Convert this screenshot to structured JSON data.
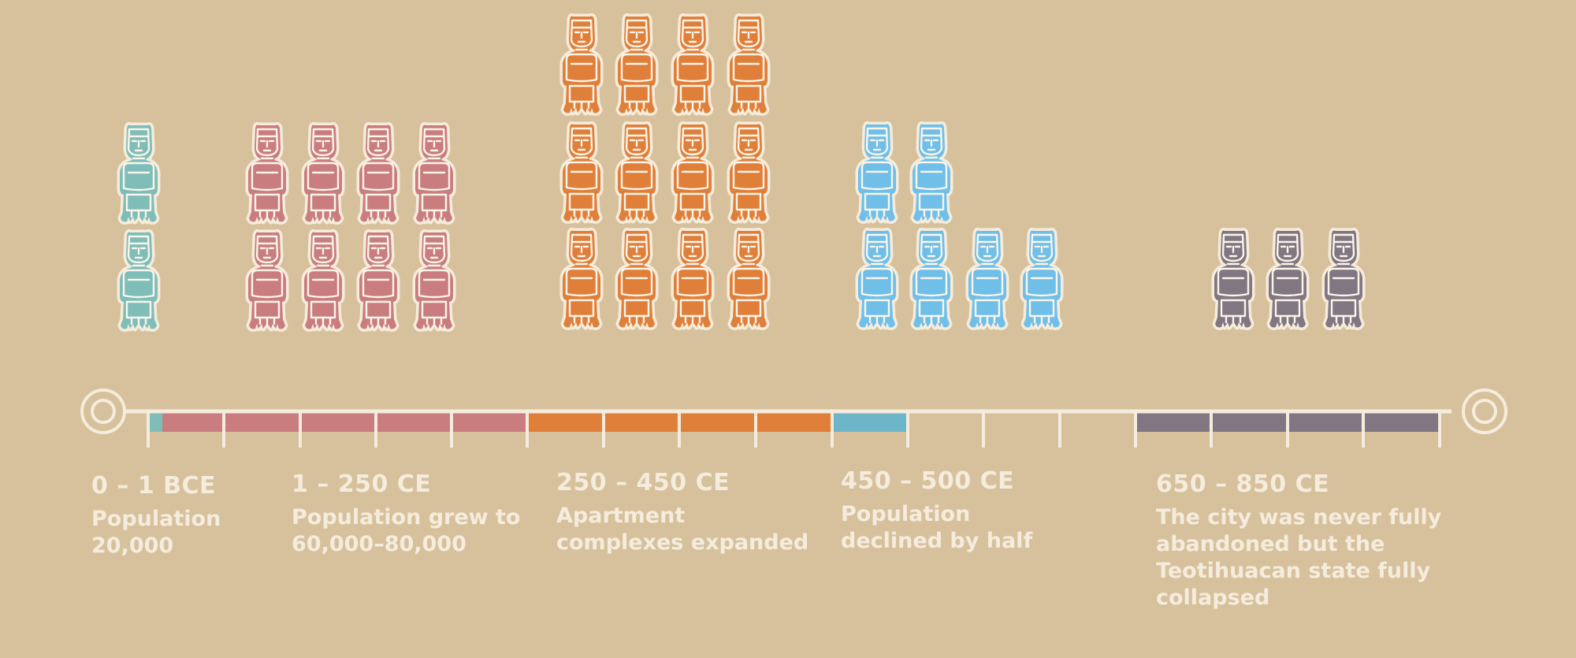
{
  "colors": {
    "background": "#d6c19c",
    "axis": "#f5ecdd",
    "period_0_1_bce": "#7fbdb9",
    "period_1_250_ce": "#c97d7e",
    "period_250_450_ce": "#e07f39",
    "period_450_500_ce": "#6fbfe9",
    "period_650_850_ce": "#817681",
    "bar_450_500": "#6db5c8"
  },
  "icon": "standing-figure-icon",
  "periods": [
    {
      "id": "p0",
      "title": "0 – 1 BCE",
      "description": "Population 20,000",
      "figures": 2,
      "color_key": "period_0_1_bce"
    },
    {
      "id": "p1",
      "title": "1 – 250 CE",
      "description": "Population grew to 60,000–80,000",
      "figures": 8,
      "color_key": "period_1_250_ce"
    },
    {
      "id": "p2",
      "title": "250 – 450 CE",
      "description": "Apartment complexes expanded",
      "figures": 12,
      "color_key": "period_250_450_ce"
    },
    {
      "id": "p3",
      "title": "450 – 500 CE",
      "description": "Population declined by half",
      "figures": 6,
      "color_key": "period_450_500_ce"
    },
    {
      "id": "p4",
      "title": "650 – 850 CE",
      "description": "The city was never fully abandoned but the Teotihuacan state fully collapsed",
      "figures": 3,
      "color_key": "period_650_850_ce"
    }
  ]
}
